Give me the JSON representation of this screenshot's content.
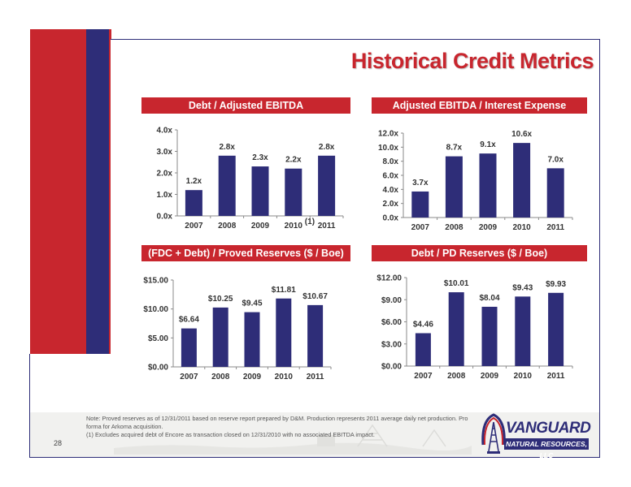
{
  "slide": {
    "title": "Historical Credit Metrics",
    "page_number": "28",
    "footnotes": [
      "Note: Proved reserves as of 12/31/2011 based on reserve report prepared by D&M. Production represents 2011 average daily net production. Pro",
      "forma for Arkoma acquisition.",
      "(1) Excludes acquired debt of Encore as transaction closed on 12/31/2010 with no associated EBITDA impact."
    ],
    "logo": {
      "name": "VANGUARD",
      "subtitle": "NATURAL RESOURCES, LLC"
    },
    "colors": {
      "accent_red": "#c8262e",
      "bar_navy": "#2e2d78"
    }
  },
  "chart_data": [
    {
      "type": "bar",
      "title": "Debt / Adjusted EBITDA",
      "categories": [
        "2007",
        "2008",
        "2009",
        "2010",
        "2011"
      ],
      "category_superscripts": [
        "",
        "",
        "",
        "(1)",
        ""
      ],
      "values": [
        1.2,
        2.8,
        2.3,
        2.2,
        2.8
      ],
      "data_labels": [
        "1.2x",
        "2.8x",
        "2.3x",
        "2.2x",
        "2.8x"
      ],
      "yticks": [
        0,
        1,
        2,
        3,
        4
      ],
      "ytick_labels": [
        "0.0x",
        "1.0x",
        "2.0x",
        "3.0x",
        "4.0x"
      ],
      "ylim": [
        0,
        4
      ],
      "grid": false,
      "legend": "none"
    },
    {
      "type": "bar",
      "title": "Adjusted EBITDA / Interest Expense",
      "categories": [
        "2007",
        "2008",
        "2009",
        "2010",
        "2011"
      ],
      "category_superscripts": [
        "",
        "",
        "",
        "",
        ""
      ],
      "values": [
        3.7,
        8.7,
        9.1,
        10.6,
        7.0
      ],
      "data_labels": [
        "3.7x",
        "8.7x",
        "9.1x",
        "10.6x",
        "7.0x"
      ],
      "yticks": [
        0,
        2,
        4,
        6,
        8,
        10,
        12
      ],
      "ytick_labels": [
        "0.0x",
        "2.0x",
        "4.0x",
        "6.0x",
        "8.0x",
        "10.0x",
        "12.0x"
      ],
      "ylim": [
        0,
        12
      ],
      "grid": false,
      "legend": "none"
    },
    {
      "type": "bar",
      "title": "(FDC + Debt) / Proved Reserves ($ / Boe)",
      "categories": [
        "2007",
        "2008",
        "2009",
        "2010",
        "2011"
      ],
      "category_superscripts": [
        "",
        "",
        "",
        "",
        ""
      ],
      "values": [
        6.64,
        10.25,
        9.45,
        11.81,
        10.67
      ],
      "data_labels": [
        "$6.64",
        "$10.25",
        "$9.45",
        "$11.81",
        "$10.67"
      ],
      "yticks": [
        0,
        5,
        10,
        15
      ],
      "ytick_labels": [
        "$0.00",
        "$5.00",
        "$10.00",
        "$15.00"
      ],
      "ylim": [
        0,
        15
      ],
      "grid": false,
      "legend": "none"
    },
    {
      "type": "bar",
      "title": "Debt / PD Reserves ($ / Boe)",
      "categories": [
        "2007",
        "2008",
        "2009",
        "2010",
        "2011"
      ],
      "category_superscripts": [
        "",
        "",
        "",
        "",
        ""
      ],
      "values": [
        4.46,
        10.01,
        8.04,
        9.43,
        9.93
      ],
      "data_labels": [
        "$4.46",
        "$10.01",
        "$8.04",
        "$9.43",
        "$9.93"
      ],
      "yticks": [
        0,
        3,
        6,
        9,
        12
      ],
      "ytick_labels": [
        "$0.00",
        "$3.00",
        "$6.00",
        "$9.00",
        "$12.00"
      ],
      "ylim": [
        0,
        12
      ],
      "grid": false,
      "legend": "none"
    }
  ]
}
